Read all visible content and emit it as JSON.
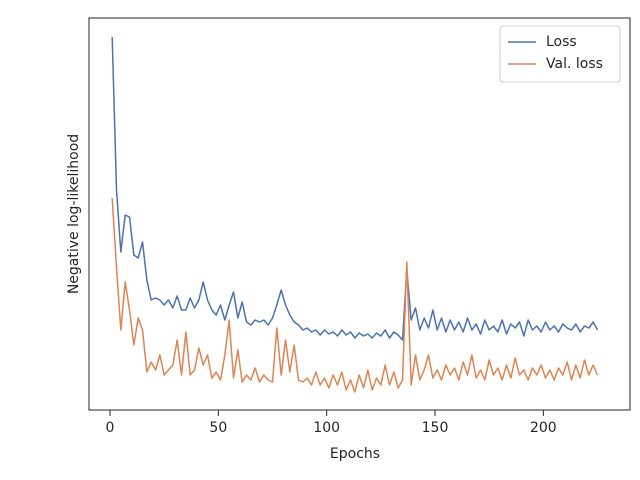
{
  "chart_data": {
    "type": "line",
    "x_label": "Epochs",
    "y_label": "Negative log-likelihood",
    "x": [
      1,
      3,
      5,
      7,
      9,
      11,
      13,
      15,
      17,
      19,
      21,
      23,
      25,
      27,
      29,
      31,
      33,
      35,
      37,
      39,
      41,
      43,
      45,
      47,
      49,
      51,
      53,
      55,
      57,
      59,
      61,
      63,
      65,
      67,
      69,
      71,
      73,
      75,
      77,
      79,
      81,
      83,
      85,
      87,
      89,
      91,
      93,
      95,
      97,
      99,
      101,
      103,
      105,
      107,
      109,
      111,
      113,
      115,
      117,
      119,
      121,
      123,
      125,
      127,
      129,
      131,
      133,
      135,
      137,
      139,
      141,
      143,
      145,
      147,
      149,
      151,
      153,
      155,
      157,
      159,
      161,
      163,
      165,
      167,
      169,
      171,
      173,
      175,
      177,
      179,
      181,
      183,
      185,
      187,
      189,
      191,
      193,
      195,
      197,
      199,
      201,
      203,
      205,
      207,
      209,
      211,
      213,
      215,
      217,
      219,
      221,
      223,
      225
    ],
    "series": [
      {
        "name": "Loss",
        "color": "#4c72b0",
        "values": [
          3.73,
          2.2,
          1.58,
          1.95,
          1.93,
          1.55,
          1.52,
          1.68,
          1.3,
          1.1,
          1.12,
          1.1,
          1.05,
          1.1,
          1.02,
          1.14,
          1.0,
          1.0,
          1.12,
          1.02,
          1.1,
          1.28,
          1.1,
          1.0,
          0.95,
          1.05,
          0.9,
          1.05,
          1.18,
          0.92,
          1.08,
          0.88,
          0.85,
          0.9,
          0.88,
          0.9,
          0.85,
          0.92,
          1.05,
          1.2,
          1.05,
          0.95,
          0.88,
          0.85,
          0.8,
          0.82,
          0.78,
          0.8,
          0.75,
          0.8,
          0.76,
          0.78,
          0.74,
          0.8,
          0.75,
          0.78,
          0.72,
          0.77,
          0.74,
          0.76,
          0.72,
          0.77,
          0.74,
          0.8,
          0.72,
          0.78,
          0.75,
          0.7,
          1.4,
          0.9,
          1.02,
          0.8,
          0.92,
          0.82,
          1.0,
          0.8,
          0.92,
          0.78,
          0.9,
          0.8,
          0.88,
          0.78,
          0.92,
          0.8,
          0.86,
          0.76,
          0.9,
          0.8,
          0.84,
          0.78,
          0.9,
          0.76,
          0.86,
          0.82,
          0.88,
          0.74,
          0.9,
          0.8,
          0.84,
          0.78,
          0.88,
          0.8,
          0.84,
          0.78,
          0.86,
          0.82,
          0.8,
          0.86,
          0.78,
          0.84,
          0.82,
          0.88,
          0.8
        ]
      },
      {
        "name": "Val. loss",
        "color": "#dd8452",
        "values": [
          2.12,
          1.42,
          0.8,
          1.28,
          1.0,
          0.65,
          0.92,
          0.8,
          0.38,
          0.48,
          0.4,
          0.55,
          0.35,
          0.4,
          0.45,
          0.7,
          0.35,
          0.78,
          0.35,
          0.4,
          0.62,
          0.45,
          0.55,
          0.32,
          0.38,
          0.3,
          0.55,
          0.9,
          0.32,
          0.6,
          0.28,
          0.35,
          0.3,
          0.42,
          0.28,
          0.35,
          0.3,
          0.28,
          0.82,
          0.35,
          0.7,
          0.38,
          0.65,
          0.3,
          0.28,
          0.32,
          0.25,
          0.38,
          0.25,
          0.32,
          0.22,
          0.35,
          0.25,
          0.38,
          0.2,
          0.3,
          0.18,
          0.35,
          0.22,
          0.4,
          0.2,
          0.32,
          0.25,
          0.45,
          0.25,
          0.38,
          0.22,
          0.3,
          1.48,
          0.25,
          0.55,
          0.3,
          0.4,
          0.55,
          0.32,
          0.4,
          0.3,
          0.45,
          0.35,
          0.42,
          0.3,
          0.48,
          0.35,
          0.55,
          0.32,
          0.4,
          0.3,
          0.5,
          0.35,
          0.42,
          0.3,
          0.45,
          0.32,
          0.52,
          0.35,
          0.4,
          0.3,
          0.42,
          0.35,
          0.45,
          0.32,
          0.4,
          0.3,
          0.42,
          0.35,
          0.48,
          0.3,
          0.45,
          0.32,
          0.5,
          0.35,
          0.45,
          0.35
        ]
      }
    ],
    "xlim": [
      -9.7,
      240
    ],
    "xticks": [
      0,
      50,
      100,
      150,
      200
    ],
    "ylim": [
      0,
      3.92
    ],
    "legend": "upper right"
  }
}
